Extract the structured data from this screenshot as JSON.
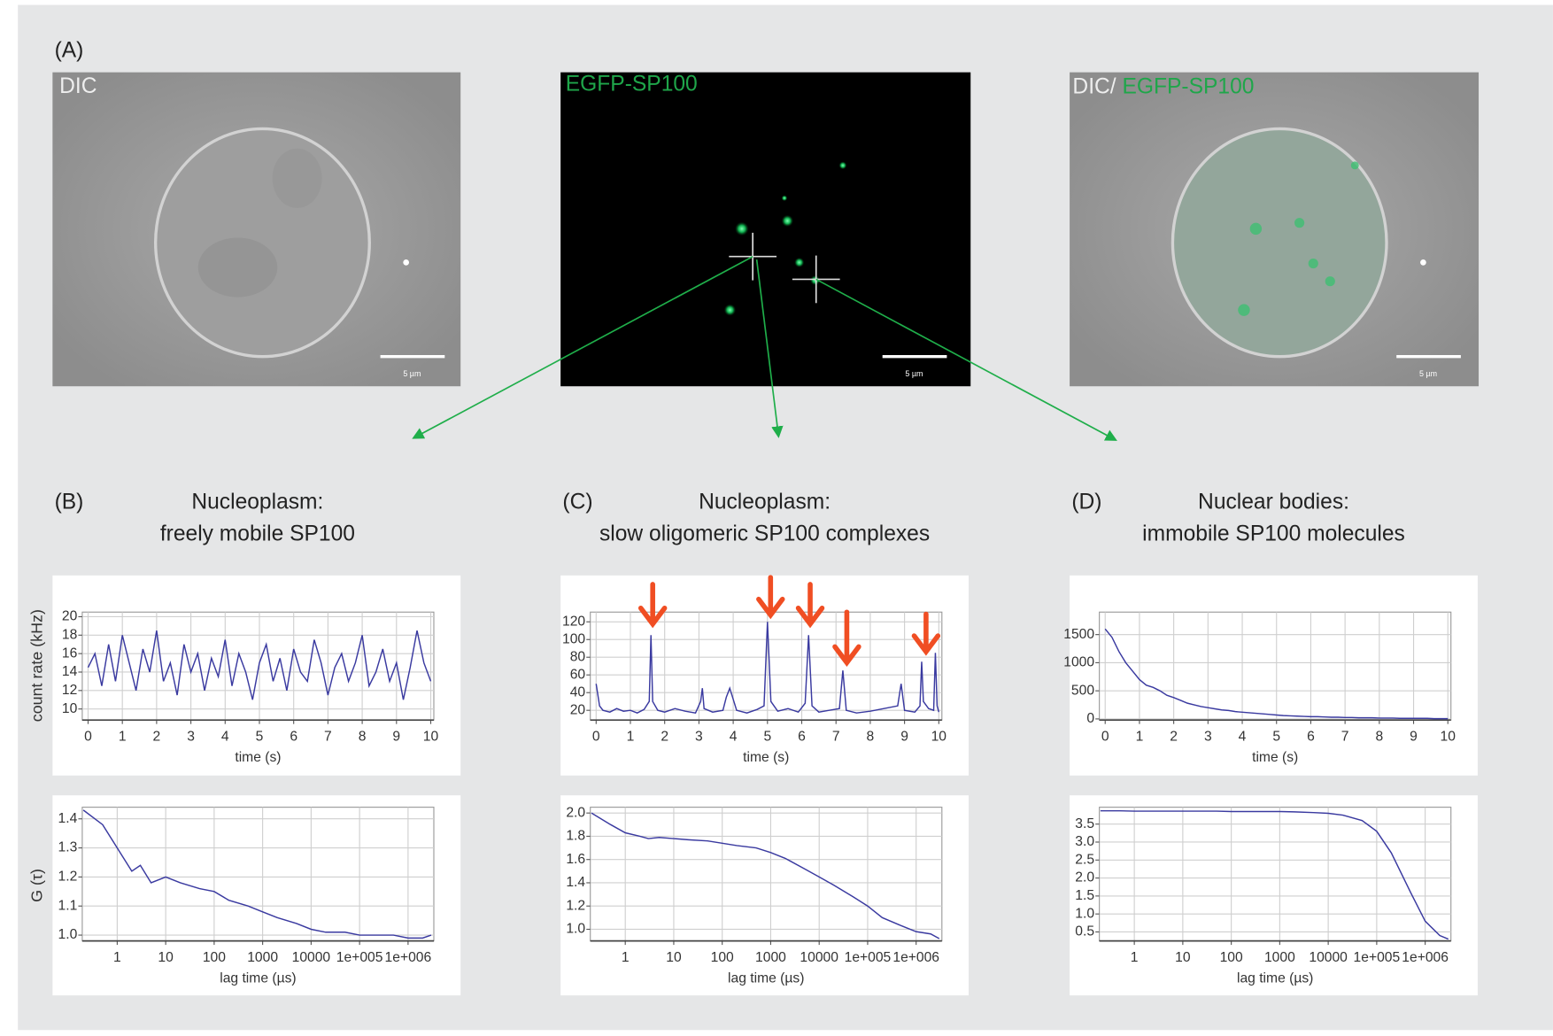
{
  "figure": {
    "panel_a": {
      "label": "(A)",
      "images": [
        {
          "label": "DIC",
          "scale": "5 µm"
        },
        {
          "label": "EGFP-SP100",
          "scale": "5 µm"
        },
        {
          "label_parts": [
            "DIC/",
            "EGFP-SP100"
          ],
          "scale": "5 µm"
        }
      ]
    },
    "panels": [
      {
        "label": "(B)",
        "title": [
          "Nucleoplasm:",
          "freely mobile SP100"
        ]
      },
      {
        "label": "(C)",
        "title": [
          "Nucleoplasm:",
          "slow oligomeric SP100 complexes"
        ]
      },
      {
        "label": "(D)",
        "title": [
          "Nuclear bodies:",
          "immobile SP100 molecules"
        ]
      }
    ]
  },
  "chart_data": [
    {
      "type": "line",
      "ylabel": "count rate (kHz)",
      "xlabel": "time (s)",
      "color": "#3a3aa0",
      "grid": true,
      "x": [
        0,
        0.2,
        0.4,
        0.6,
        0.8,
        1,
        1.2,
        1.4,
        1.6,
        1.8,
        2,
        2.2,
        2.4,
        2.6,
        2.8,
        3,
        3.2,
        3.4,
        3.6,
        3.8,
        4,
        4.2,
        4.4,
        4.6,
        4.8,
        5,
        5.2,
        5.4,
        5.6,
        5.8,
        6,
        6.2,
        6.4,
        6.6,
        6.8,
        7,
        7.2,
        7.4,
        7.6,
        7.8,
        8,
        8.2,
        8.4,
        8.6,
        8.8,
        9,
        9.2,
        9.4,
        9.6,
        9.8,
        10
      ],
      "values": [
        14.5,
        16,
        12.5,
        17,
        13,
        18,
        15,
        12,
        16.5,
        14,
        18.5,
        13,
        15,
        11.5,
        17,
        14,
        16,
        12,
        15.5,
        13.5,
        17.5,
        12.5,
        16,
        14,
        11,
        15,
        17,
        13,
        15.5,
        12,
        16.5,
        14,
        13,
        17.5,
        15,
        11.5,
        14.5,
        16,
        13,
        15,
        18,
        12.5,
        14,
        16.5,
        13,
        15,
        11,
        14.5,
        18.5,
        15,
        13
      ],
      "xlim": [
        -0.17,
        10.09
      ],
      "ylim": [
        8.8,
        20.5
      ],
      "xticks": [
        0,
        1,
        2,
        3,
        4,
        5,
        6,
        7,
        8,
        9,
        10
      ],
      "yticks": [
        10,
        12,
        14,
        16,
        18,
        20
      ]
    },
    {
      "type": "line",
      "xlabel": "time (s)",
      "color": "#3a3aa0",
      "grid": true,
      "x": [
        0,
        0.1,
        0.2,
        0.4,
        0.6,
        0.8,
        1.0,
        1.2,
        1.4,
        1.55,
        1.6,
        1.65,
        1.8,
        2.0,
        2.3,
        2.6,
        2.9,
        3.05,
        3.1,
        3.15,
        3.4,
        3.7,
        3.8,
        3.9,
        4.1,
        4.4,
        4.7,
        4.9,
        5.0,
        5.1,
        5.3,
        5.6,
        5.9,
        6.1,
        6.2,
        6.3,
        6.5,
        6.8,
        7.1,
        7.2,
        7.3,
        7.6,
        8.0,
        8.4,
        8.8,
        8.9,
        9.0,
        9.3,
        9.45,
        9.5,
        9.55,
        9.7,
        9.85,
        9.9,
        9.95,
        10
      ],
      "values": [
        50,
        25,
        20,
        18,
        22,
        19,
        20,
        17,
        21,
        30,
        105,
        30,
        20,
        18,
        22,
        19,
        17,
        30,
        45,
        22,
        18,
        20,
        35,
        45,
        20,
        17,
        21,
        25,
        120,
        30,
        19,
        22,
        18,
        28,
        105,
        25,
        18,
        20,
        22,
        65,
        20,
        17,
        19,
        22,
        25,
        50,
        20,
        18,
        25,
        75,
        30,
        22,
        20,
        85,
        25,
        18
      ],
      "xlim": [
        -0.17,
        10.09
      ],
      "ylim": [
        9,
        131
      ],
      "xticks": [
        0,
        1,
        2,
        3,
        4,
        5,
        6,
        7,
        8,
        9,
        10
      ],
      "yticks": [
        20,
        40,
        60,
        80,
        100,
        120
      ]
    },
    {
      "type": "line",
      "xlabel": "time (s)",
      "color": "#3a3aa0",
      "grid": true,
      "x": [
        0,
        0.2,
        0.4,
        0.6,
        0.8,
        1,
        1.2,
        1.4,
        1.6,
        1.8,
        2,
        2.2,
        2.4,
        2.6,
        2.8,
        3,
        3.2,
        3.4,
        3.6,
        3.8,
        4,
        4.2,
        4.4,
        4.6,
        4.8,
        5,
        5.2,
        5.4,
        5.6,
        5.8,
        6,
        6.2,
        6.4,
        6.6,
        6.8,
        7,
        7.2,
        7.4,
        7.6,
        7.8,
        8,
        8.2,
        8.4,
        8.6,
        8.8,
        9,
        9.2,
        9.4,
        9.6,
        9.8,
        10
      ],
      "values": [
        1600,
        1450,
        1200,
        1000,
        850,
        700,
        600,
        560,
        500,
        420,
        380,
        330,
        280,
        250,
        220,
        200,
        180,
        160,
        150,
        130,
        120,
        110,
        100,
        90,
        80,
        70,
        60,
        55,
        50,
        45,
        40,
        40,
        35,
        30,
        30,
        25,
        25,
        20,
        20,
        20,
        15,
        15,
        15,
        10,
        10,
        10,
        10,
        10,
        5,
        5,
        5
      ],
      "xlim": [
        -0.17,
        10.09
      ],
      "ylim": [
        -20,
        1900
      ],
      "xticks": [
        0,
        1,
        2,
        3,
        4,
        5,
        6,
        7,
        8,
        9,
        10
      ],
      "yticks": [
        0,
        500,
        1000,
        1500
      ]
    },
    {
      "type": "line",
      "ylabel": "G (τ)",
      "xlabel": "lag time (µs)",
      "color": "#3a3aa0",
      "grid": true,
      "log_x": true,
      "x": [
        0.2,
        0.5,
        1,
        2,
        3,
        5,
        10,
        20,
        50,
        100,
        200,
        500,
        1000,
        2000,
        5000,
        10000,
        20000,
        50000,
        100000,
        200000,
        500000,
        1000000,
        2000000,
        3000000
      ],
      "values": [
        1.43,
        1.38,
        1.3,
        1.22,
        1.24,
        1.18,
        1.2,
        1.18,
        1.16,
        1.15,
        1.12,
        1.1,
        1.08,
        1.06,
        1.04,
        1.02,
        1.01,
        1.01,
        1.0,
        1.0,
        1.0,
        0.99,
        0.99,
        1.0
      ],
      "xlim": [
        0.19,
        3400000
      ],
      "ylim": [
        0.98,
        1.44
      ],
      "xticks": [
        1,
        10,
        100,
        1000,
        10000,
        {
          "value": 100000,
          "label": "1e+005"
        },
        {
          "value": 1000000,
          "label": "1e+006"
        }
      ],
      "yticks": [
        {
          "value": 1,
          "label": "1.0"
        },
        1.1,
        1.2,
        1.3,
        1.4
      ]
    },
    {
      "type": "line",
      "xlabel": "lag time (µs)",
      "color": "#3a3aa0",
      "grid": true,
      "log_x": true,
      "x": [
        0.2,
        0.5,
        1,
        2,
        3,
        5,
        10,
        20,
        50,
        100,
        200,
        500,
        1000,
        2000,
        5000,
        10000,
        20000,
        50000,
        100000,
        200000,
        500000,
        1000000,
        2000000,
        3000000
      ],
      "values": [
        2.0,
        1.9,
        1.83,
        1.8,
        1.78,
        1.79,
        1.78,
        1.77,
        1.76,
        1.74,
        1.72,
        1.7,
        1.66,
        1.61,
        1.52,
        1.45,
        1.38,
        1.28,
        1.2,
        1.1,
        1.03,
        0.98,
        0.96,
        0.92
      ],
      "xlim": [
        0.19,
        3400000
      ],
      "ylim": [
        0.9,
        2.05
      ],
      "xticks": [
        1,
        10,
        100,
        1000,
        10000,
        {
          "value": 100000,
          "label": "1e+005"
        },
        {
          "value": 1000000,
          "label": "1e+006"
        }
      ],
      "yticks": [
        {
          "value": 1,
          "label": "1.0"
        },
        1.2,
        1.4,
        1.6,
        1.8,
        {
          "value": 2,
          "label": "2.0"
        }
      ]
    },
    {
      "type": "line",
      "xlabel": "lag time (µs)",
      "color": "#3a3aa0",
      "grid": true,
      "log_x": true,
      "x": [
        0.2,
        0.5,
        1,
        2,
        3,
        5,
        10,
        20,
        50,
        100,
        200,
        500,
        1000,
        2000,
        5000,
        10000,
        20000,
        50000,
        100000,
        200000,
        500000,
        1000000,
        2000000,
        3000000
      ],
      "values": [
        3.87,
        3.87,
        3.86,
        3.86,
        3.86,
        3.86,
        3.86,
        3.86,
        3.86,
        3.85,
        3.85,
        3.85,
        3.85,
        3.84,
        3.82,
        3.8,
        3.75,
        3.6,
        3.3,
        2.7,
        1.6,
        0.8,
        0.4,
        0.3
      ],
      "xlim": [
        0.19,
        3400000
      ],
      "ylim": [
        0.25,
        3.97
      ],
      "xticks": [
        1,
        10,
        100,
        1000,
        10000,
        {
          "value": 100000,
          "label": "1e+005"
        },
        {
          "value": 1000000,
          "label": "1e+006"
        }
      ],
      "yticks": [
        0.5,
        {
          "value": 1,
          "label": "1.0"
        },
        1.5,
        {
          "value": 2,
          "label": "2.0"
        },
        2.5,
        {
          "value": 3,
          "label": "3.0"
        },
        3.5
      ]
    }
  ]
}
